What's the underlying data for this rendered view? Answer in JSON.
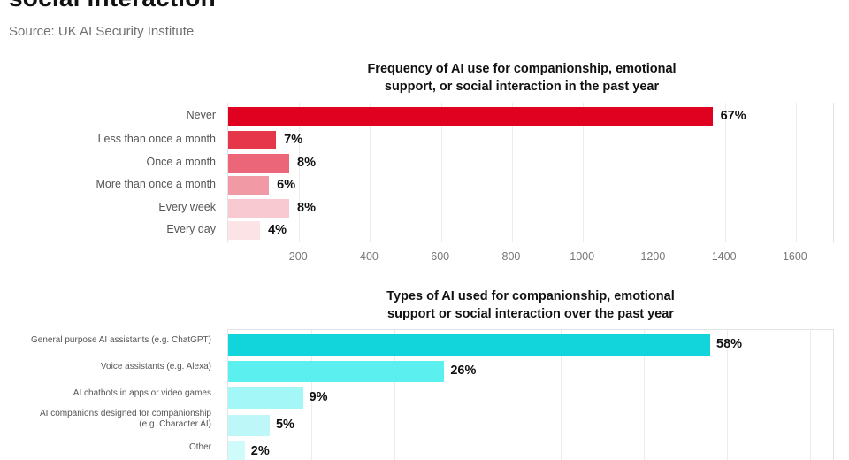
{
  "header": {
    "title": "social interaction",
    "source": "Source: UK AI Security Institute"
  },
  "chart_data": [
    {
      "type": "bar",
      "orientation": "horizontal",
      "title": "Frequency of AI use for companionship, emotional support, or social interaction in the past year",
      "title_lines": [
        "Frequency of AI use for companionship, emotional",
        "support, or social interaction in the past year"
      ],
      "categories": [
        "Never",
        "Less than once a month",
        "Once a month",
        "More than once a month",
        "Every week",
        "Every day"
      ],
      "values": [
        1365,
        135,
        172,
        115,
        172,
        90
      ],
      "labels": [
        "67%",
        "7%",
        "8%",
        "6%",
        "8%",
        "4%"
      ],
      "colors": [
        "#E0001F",
        "#E5364A",
        "#EB6679",
        "#F199A4",
        "#F8C9D0",
        "#FCE3E6"
      ],
      "xticks": [
        200,
        400,
        600,
        800,
        1000,
        1200,
        1400,
        1600
      ],
      "xlim": [
        0,
        1710
      ],
      "xlabel": "",
      "ylabel": "",
      "grid": true,
      "legend": "none"
    },
    {
      "type": "bar",
      "orientation": "horizontal",
      "title": "Types of AI used for companionship, emotional support or social interaction over the past year",
      "title_lines": [
        "Types of AI used for companionship, emotional",
        "support or social interaction over the past year"
      ],
      "categories": [
        "General purpose AI assistants (e.g. ChatGPT)",
        "Voice assistants (e.g. Alexa)",
        "AI chatbots in apps or video games",
        "AI companions designed for companionship (e.g. Character.AI)",
        "Other"
      ],
      "category_lines": [
        [
          "General purpose AI assistants (e.g. ChatGPT)"
        ],
        [
          "Voice assistants (e.g. Alexa)"
        ],
        [
          "AI chatbots in apps or video games"
        ],
        [
          "AI companions designed for companionship",
          "(e.g. Character.AI)"
        ],
        [
          "Other"
        ]
      ],
      "values": [
        58,
        26,
        9,
        5,
        2
      ],
      "labels": [
        "58%",
        "26%",
        "9%",
        "5%",
        "2%"
      ],
      "colors": [
        "#12D4DB",
        "#5CEFF0",
        "#A3F7F7",
        "#BDF7F7",
        "#CFFBFB"
      ],
      "xlim": [
        0,
        73
      ],
      "xlabel": "",
      "ylabel": "",
      "grid": true,
      "legend": "none"
    }
  ]
}
